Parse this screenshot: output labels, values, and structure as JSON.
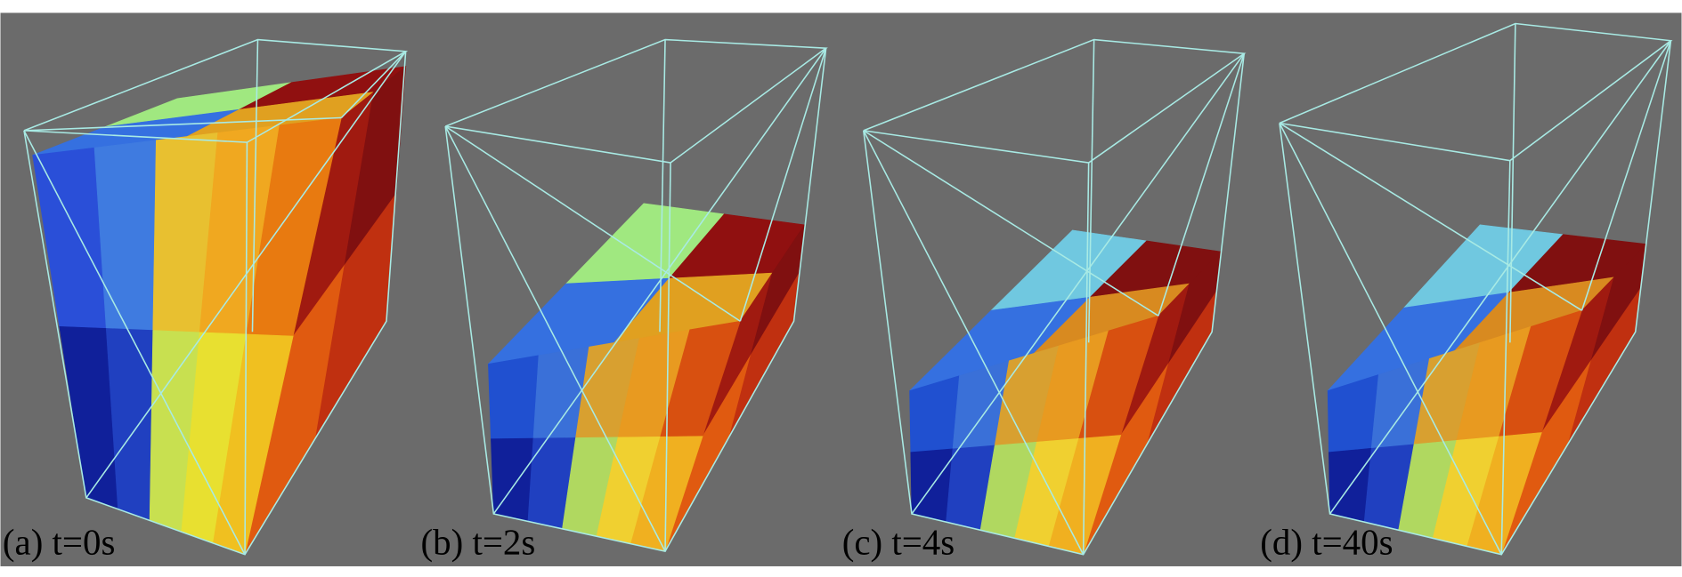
{
  "panels": [
    {
      "label": "(a) t=0s"
    },
    {
      "label": "(b) t=2s"
    },
    {
      "label": "(c) t=4s"
    },
    {
      "label": "(d) t=40s"
    }
  ]
}
